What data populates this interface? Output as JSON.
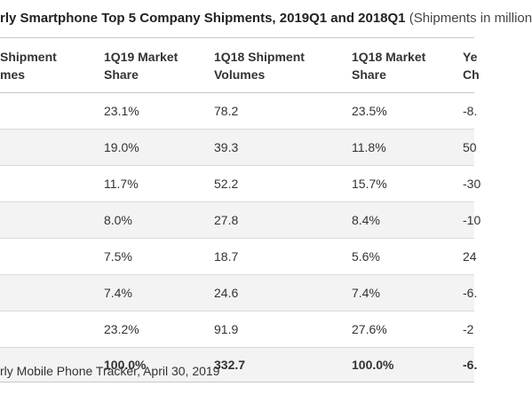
{
  "title": {
    "main": "rly Smartphone Top 5 Company Shipments, 2019Q1 and 2018Q1",
    "sub": "(Shipments in million"
  },
  "table": {
    "headers": [
      {
        "line1": "Shipment",
        "line2": "mes"
      },
      {
        "line1": "1Q19 Market",
        "line2": "Share"
      },
      {
        "line1": "1Q18 Shipment",
        "line2": "Volumes"
      },
      {
        "line1": "1Q18 Market",
        "line2": "Share"
      },
      {
        "line1": "Ye",
        "line2": "Ch"
      }
    ],
    "rows": [
      {
        "c0": "",
        "c1": "23.1%",
        "c2": "78.2",
        "c3": "23.5%",
        "c4": "-8."
      },
      {
        "c0": "",
        "c1": "19.0%",
        "c2": "39.3",
        "c3": "11.8%",
        "c4": "50"
      },
      {
        "c0": "",
        "c1": "11.7%",
        "c2": "52.2",
        "c3": "15.7%",
        "c4": "-30"
      },
      {
        "c0": "",
        "c1": "8.0%",
        "c2": "27.8",
        "c3": "8.4%",
        "c4": "-10"
      },
      {
        "c0": "",
        "c1": "7.5%",
        "c2": "18.7",
        "c3": "5.6%",
        "c4": "24"
      },
      {
        "c0": "",
        "c1": "7.4%",
        "c2": "24.6",
        "c3": "7.4%",
        "c4": "-6."
      },
      {
        "c0": "",
        "c1": "23.2%",
        "c2": "91.9",
        "c3": "27.6%",
        "c4": "-2"
      }
    ],
    "total": {
      "c0": "",
      "c1": "100.0%",
      "c2": "332.7",
      "c3": "100.0%",
      "c4": "-6."
    }
  },
  "source": "rly Mobile Phone Tracker, April 30, 2019"
}
